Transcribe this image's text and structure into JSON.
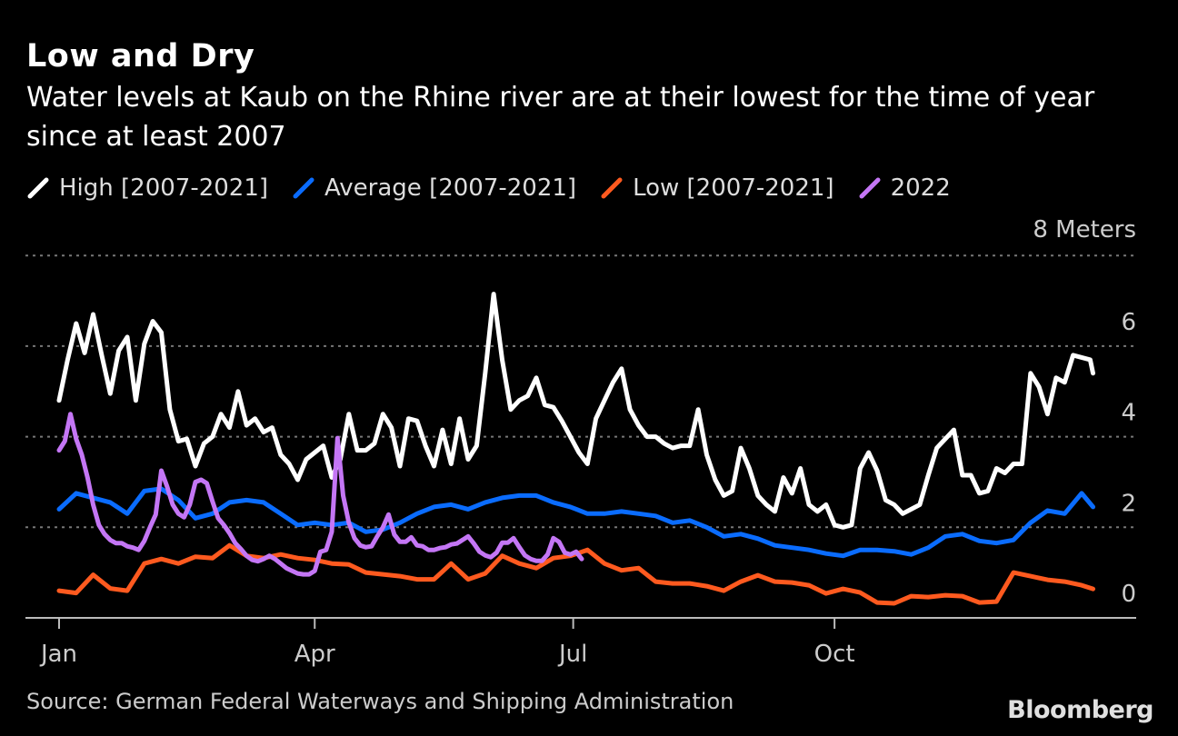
{
  "chart_data": {
    "type": "line",
    "title": "Low and Dry",
    "subtitle": "Water levels at Kaub on the Rhine river are at their lowest for the time of year since at least 2007",
    "ylabel": "8 Meters",
    "ylim": [
      0,
      8
    ],
    "yticks": [
      {
        "value": 0,
        "label": "0"
      },
      {
        "value": 2,
        "label": "2"
      },
      {
        "value": 4,
        "label": "4"
      },
      {
        "value": 6,
        "label": "6"
      },
      {
        "value": 8,
        "label": ""
      }
    ],
    "xlim_day_of_year": [
      0,
      364
    ],
    "xticks": [
      {
        "day": 0,
        "label": "Jan"
      },
      {
        "day": 90,
        "label": "Apr"
      },
      {
        "day": 181,
        "label": "Jul"
      },
      {
        "day": 273,
        "label": "Oct"
      }
    ],
    "grid": true,
    "legend_position": "top-left",
    "series": [
      {
        "name": "High [2007-2021]",
        "color": "#ffffff",
        "start_day": 0,
        "step_days": 3,
        "values": [
          4.8,
          5.7,
          6.5,
          5.85,
          6.7,
          5.8,
          4.95,
          5.9,
          6.2,
          4.8,
          6.05,
          6.55,
          6.3,
          4.6,
          3.9,
          3.95,
          3.35,
          3.85,
          4.0,
          4.5,
          4.2,
          5.0,
          4.25,
          4.4,
          4.1,
          4.2,
          3.6,
          3.4,
          3.05,
          3.5,
          3.65,
          3.8,
          3.1,
          3.5,
          4.5,
          3.7,
          3.7,
          3.85,
          4.5,
          4.2,
          3.35,
          4.4,
          4.35,
          3.8,
          3.35,
          4.15,
          3.4,
          4.4,
          3.5,
          3.8,
          5.4,
          7.15,
          5.7,
          4.6,
          4.8,
          4.9,
          5.3,
          4.7,
          4.65,
          4.35,
          4.0,
          3.65,
          3.4,
          4.4,
          4.8,
          5.2,
          5.5,
          4.6,
          4.25,
          4.0,
          4.0,
          3.85,
          3.75,
          3.8,
          3.8,
          4.6,
          3.6,
          3.05,
          2.7,
          2.8,
          3.75,
          3.3,
          2.7,
          2.5,
          2.35,
          3.1,
          2.75,
          3.3,
          2.5,
          2.35,
          2.5,
          2.05,
          2.0,
          2.05,
          3.3,
          3.65,
          3.25,
          2.6,
          2.5,
          2.3,
          2.4,
          2.5,
          3.15,
          3.75,
          3.95,
          4.15,
          3.15,
          3.15,
          2.75,
          2.8,
          3.3,
          3.2,
          3.4,
          3.4,
          5.4,
          5.1,
          4.5,
          5.3,
          5.2,
          5.8,
          5.75,
          5.7,
          5.4
        ]
      },
      {
        "name": "Average [2007-2021]",
        "color": "#0a6cff",
        "start_day": 0,
        "step_days": 6,
        "values": [
          2.4,
          2.75,
          2.65,
          2.55,
          2.3,
          2.8,
          2.85,
          2.6,
          2.2,
          2.3,
          2.55,
          2.6,
          2.55,
          2.3,
          2.05,
          2.1,
          2.05,
          2.1,
          1.9,
          1.95,
          2.1,
          2.3,
          2.45,
          2.5,
          2.4,
          2.55,
          2.65,
          2.7,
          2.7,
          2.55,
          2.45,
          2.3,
          2.3,
          2.35,
          2.3,
          2.25,
          2.1,
          2.15,
          2.0,
          1.8,
          1.85,
          1.75,
          1.6,
          1.55,
          1.5,
          1.42,
          1.37,
          1.5,
          1.5,
          1.47,
          1.4,
          1.55,
          1.8,
          1.85,
          1.7,
          1.65,
          1.72,
          2.1,
          2.37,
          2.3,
          2.75,
          2.45
        ]
      },
      {
        "name": "Low [2007-2021]",
        "color": "#ff5a1f",
        "start_day": 0,
        "step_days": 6,
        "values": [
          0.6,
          0.55,
          0.95,
          0.65,
          0.6,
          1.2,
          1.3,
          1.2,
          1.35,
          1.32,
          1.6,
          1.37,
          1.32,
          1.4,
          1.32,
          1.28,
          1.2,
          1.18,
          1.0,
          0.96,
          0.92,
          0.85,
          0.85,
          1.2,
          0.85,
          0.98,
          1.37,
          1.2,
          1.1,
          1.32,
          1.37,
          1.5,
          1.2,
          1.05,
          1.1,
          0.8,
          0.76,
          0.76,
          0.7,
          0.6,
          0.8,
          0.94,
          0.8,
          0.78,
          0.72,
          0.54,
          0.64,
          0.56,
          0.34,
          0.32,
          0.48,
          0.46,
          0.5,
          0.48,
          0.34,
          0.36,
          1.0,
          0.92,
          0.84,
          0.8,
          0.72,
          0.64
        ]
      },
      {
        "name": "2022",
        "color": "#c476f5",
        "start_day": 0,
        "step_days": 2,
        "values": [
          3.7,
          3.9,
          4.5,
          3.95,
          3.6,
          3.1,
          2.5,
          2.05,
          1.85,
          1.72,
          1.65,
          1.65,
          1.58,
          1.55,
          1.5,
          1.7,
          2.0,
          2.28,
          3.25,
          2.9,
          2.5,
          2.3,
          2.22,
          2.5,
          3.0,
          3.05,
          2.97,
          2.57,
          2.2,
          2.05,
          1.87,
          1.65,
          1.52,
          1.37,
          1.28,
          1.25,
          1.3,
          1.37,
          1.3,
          1.2,
          1.1,
          1.04,
          0.98,
          0.96,
          0.96,
          1.04,
          1.46,
          1.5,
          1.9,
          3.97,
          2.7,
          2.1,
          1.76,
          1.6,
          1.56,
          1.58,
          1.8,
          2.0,
          2.28,
          1.84,
          1.68,
          1.68,
          1.78,
          1.6,
          1.58,
          1.5,
          1.5,
          1.54,
          1.56,
          1.62,
          1.64,
          1.72,
          1.8,
          1.64,
          1.46,
          1.38,
          1.34,
          1.44,
          1.66,
          1.66,
          1.76,
          1.56,
          1.38,
          1.3,
          1.26,
          1.26,
          1.4,
          1.76,
          1.68,
          1.44,
          1.4,
          1.46,
          1.3
        ]
      }
    ],
    "source": "Source: German Federal Waterways and Shipping Administration",
    "logo": "Bloomberg"
  }
}
